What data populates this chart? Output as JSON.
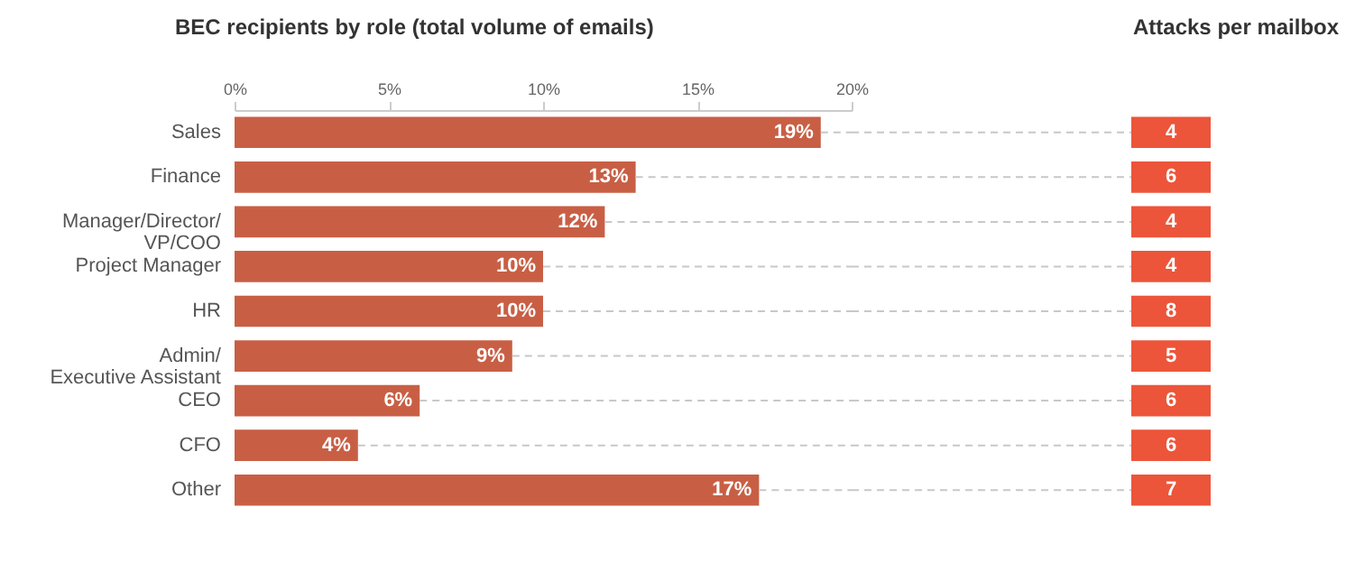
{
  "chart_data": [
    {
      "type": "bar",
      "orientation": "horizontal",
      "title": "BEC recipients by role (total volume of emails)",
      "categories": [
        "Sales",
        "Finance",
        "Manager/Director/ VP/COO",
        "Project Manager",
        "HR",
        "Admin/ Executive Assistant",
        "CEO",
        "CFO",
        "Other"
      ],
      "values": [
        19,
        13,
        12,
        10,
        10,
        9,
        6,
        4,
        17
      ],
      "value_labels": [
        "19%",
        "13%",
        "12%",
        "10%",
        "10%",
        "9%",
        "6%",
        "4%",
        "17%"
      ],
      "color": "#c85f45",
      "xlim": [
        0,
        20
      ],
      "xticks": [
        {
          "value": 0,
          "label": "0%"
        },
        {
          "value": 5,
          "label": "5%"
        },
        {
          "value": 10,
          "label": "10%"
        },
        {
          "value": 15,
          "label": "15%"
        },
        {
          "value": 20,
          "label": "20%"
        }
      ]
    },
    {
      "type": "other",
      "title": "Attacks per mailbox",
      "categories": [
        null,
        null,
        null,
        null,
        null,
        null,
        null,
        null,
        null
      ],
      "values": [
        4,
        6,
        4,
        4,
        8,
        5,
        6,
        6,
        7
      ],
      "color": "#ec553a",
      "data_labels": true
    }
  ]
}
